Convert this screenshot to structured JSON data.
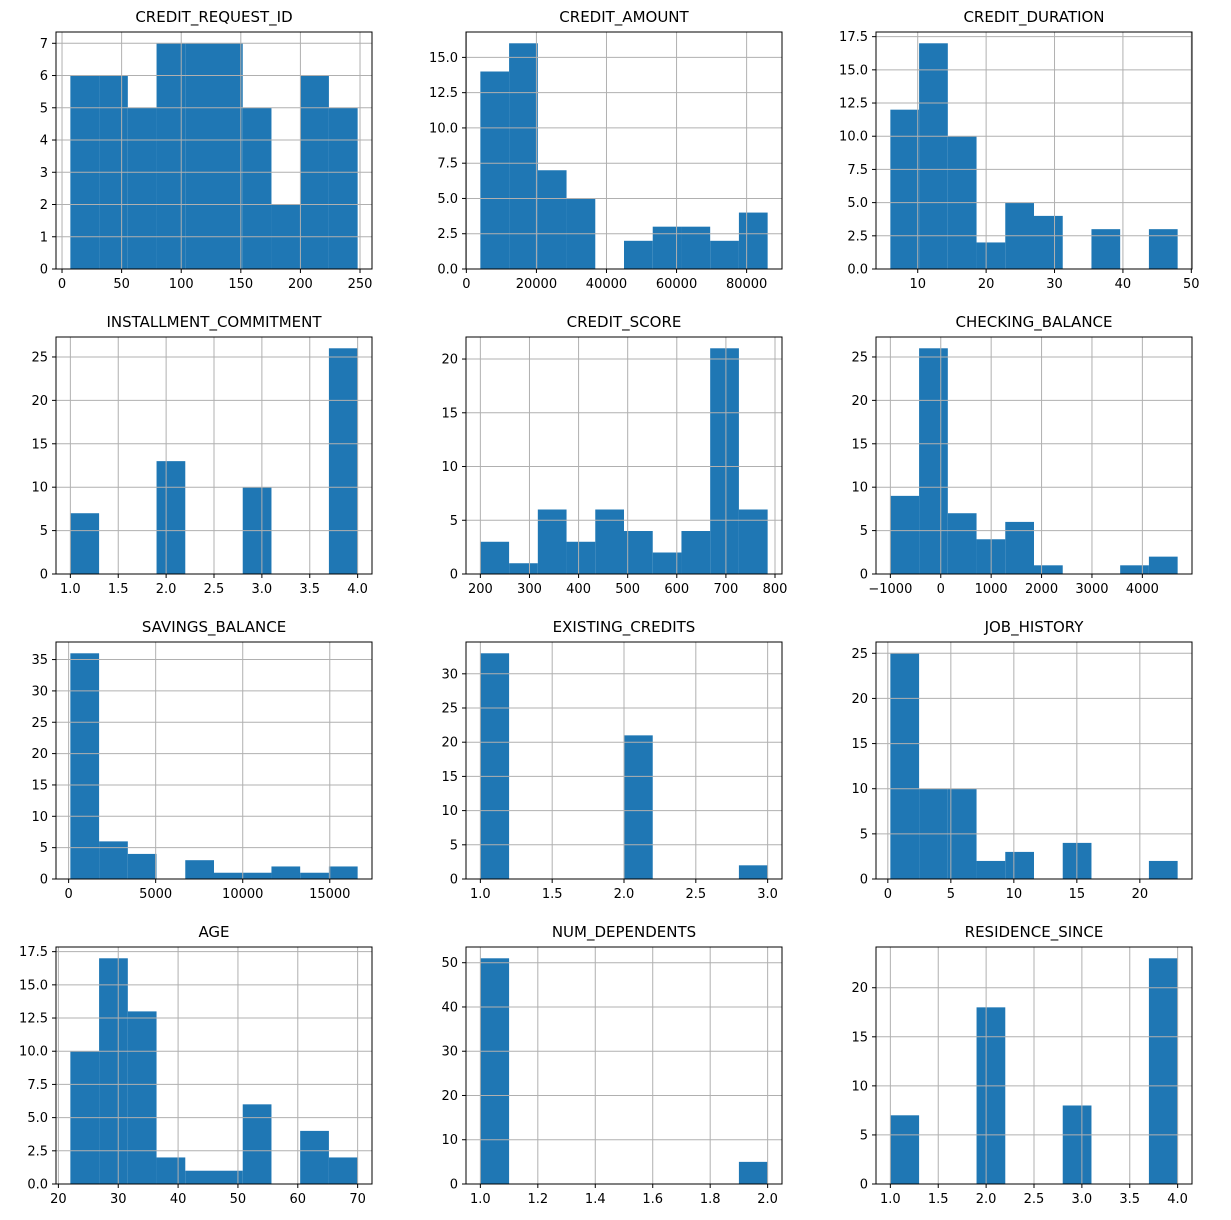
{
  "figure": {
    "background": "#ffffff",
    "bar_color": "#1f77b4",
    "grid_color": "#b0b0b0",
    "spine_color": "#000000",
    "text_color": "#000000",
    "rows": 4,
    "cols": 3
  },
  "chart_data": [
    {
      "type": "bar",
      "id": "credit-request-id",
      "title": "CREDIT_REQUEST_ID",
      "bin_edges": [
        7,
        31.1,
        55.2,
        79.3,
        103.4,
        127.5,
        151.6,
        175.7,
        199.8,
        223.9,
        248
      ],
      "counts": [
        6,
        6,
        5,
        7,
        7,
        7,
        5,
        2,
        6,
        5
      ],
      "xtick_vals": [
        0,
        50,
        100,
        150,
        200,
        250
      ],
      "xtick_labels": [
        "0",
        "50",
        "100",
        "150",
        "200",
        "250"
      ],
      "ytick_vals": [
        0,
        1,
        2,
        3,
        4,
        5,
        6,
        7
      ],
      "ytick_labels": [
        "0",
        "1",
        "2",
        "3",
        "4",
        "5",
        "6",
        "7"
      ],
      "ylim": [
        0,
        7.35
      ],
      "grid": true,
      "legend": null
    },
    {
      "type": "bar",
      "id": "credit-amount",
      "title": "CREDIT_AMOUNT",
      "bin_edges": [
        4000,
        12200,
        20400,
        28600,
        36800,
        45000,
        53200,
        61400,
        69600,
        77800,
        86000
      ],
      "counts": [
        14,
        16,
        7,
        5,
        0,
        2,
        3,
        3,
        2,
        4
      ],
      "xtick_vals": [
        0,
        20000,
        40000,
        60000,
        80000
      ],
      "xtick_labels": [
        "0",
        "20000",
        "40000",
        "60000",
        "80000"
      ],
      "ytick_vals": [
        0,
        2.5,
        5,
        7.5,
        10,
        12.5,
        15
      ],
      "ytick_labels": [
        "0.0",
        "2.5",
        "5.0",
        "7.5",
        "10.0",
        "12.5",
        "15.0"
      ],
      "ylim": [
        0,
        16.8
      ],
      "grid": true,
      "legend": null
    },
    {
      "type": "bar",
      "id": "credit-duration",
      "title": "CREDIT_DURATION",
      "bin_edges": [
        6,
        10.2,
        14.4,
        18.6,
        22.8,
        27,
        31.2,
        35.4,
        39.6,
        43.8,
        48
      ],
      "counts": [
        12,
        17,
        10,
        2,
        5,
        4,
        0,
        3,
        0,
        3
      ],
      "xtick_vals": [
        10,
        20,
        30,
        40,
        50
      ],
      "xtick_labels": [
        "10",
        "20",
        "30",
        "40",
        "50"
      ],
      "ytick_vals": [
        0,
        2.5,
        5,
        7.5,
        10,
        12.5,
        15,
        17.5
      ],
      "ytick_labels": [
        "0.0",
        "2.5",
        "5.0",
        "7.5",
        "10.0",
        "12.5",
        "15.0",
        "17.5"
      ],
      "ylim": [
        0,
        17.85
      ],
      "grid": true,
      "legend": null
    },
    {
      "type": "bar",
      "id": "installment-commitment",
      "title": "INSTALLMENT_COMMITMENT",
      "bin_edges": [
        1,
        1.3,
        1.6,
        1.9,
        2.2,
        2.5,
        2.8,
        3.1,
        3.4,
        3.7,
        4
      ],
      "counts": [
        7,
        0,
        0,
        13,
        0,
        0,
        10,
        0,
        0,
        26
      ],
      "xtick_vals": [
        1,
        1.5,
        2,
        2.5,
        3,
        3.5,
        4
      ],
      "xtick_labels": [
        "1.0",
        "1.5",
        "2.0",
        "2.5",
        "3.0",
        "3.5",
        "4.0"
      ],
      "ytick_vals": [
        0,
        5,
        10,
        15,
        20,
        25
      ],
      "ytick_labels": [
        "0",
        "5",
        "10",
        "15",
        "20",
        "25"
      ],
      "ylim": [
        0,
        27.3
      ],
      "grid": true,
      "legend": null
    },
    {
      "type": "bar",
      "id": "credit-score",
      "title": "CREDIT_SCORE",
      "bin_edges": [
        200,
        258.5,
        317,
        375.5,
        434,
        492.5,
        551,
        609.5,
        668,
        726.5,
        785
      ],
      "counts": [
        3,
        1,
        6,
        3,
        6,
        4,
        2,
        4,
        21,
        6
      ],
      "xtick_vals": [
        200,
        300,
        400,
        500,
        600,
        700,
        800
      ],
      "xtick_labels": [
        "200",
        "300",
        "400",
        "500",
        "600",
        "700",
        "800"
      ],
      "ytick_vals": [
        0,
        5,
        10,
        15,
        20
      ],
      "ytick_labels": [
        "0",
        "5",
        "10",
        "15",
        "20"
      ],
      "ylim": [
        0,
        22.05
      ],
      "grid": true,
      "legend": null
    },
    {
      "type": "bar",
      "id": "checking-balance",
      "title": "CHECKING_BALANCE",
      "bin_edges": [
        -1000,
        -430,
        140,
        710,
        1280,
        1850,
        2420,
        2990,
        3560,
        4130,
        4700
      ],
      "counts": [
        9,
        26,
        7,
        4,
        6,
        1,
        0,
        0,
        1,
        2
      ],
      "xtick_vals": [
        -1000,
        0,
        1000,
        2000,
        3000,
        4000
      ],
      "xtick_labels": [
        "−1000",
        "0",
        "1000",
        "2000",
        "3000",
        "4000"
      ],
      "ytick_vals": [
        0,
        5,
        10,
        15,
        20,
        25
      ],
      "ytick_labels": [
        "0",
        "5",
        "10",
        "15",
        "20",
        "25"
      ],
      "ylim": [
        0,
        27.3
      ],
      "grid": true,
      "legend": null
    },
    {
      "type": "bar",
      "id": "savings-balance",
      "title": "SAVINGS_BALANCE",
      "bin_edges": [
        100,
        1750,
        3400,
        5050,
        6700,
        8350,
        10000,
        11650,
        13300,
        14950,
        16600
      ],
      "counts": [
        36,
        6,
        4,
        0,
        3,
        1,
        1,
        2,
        1,
        2
      ],
      "xtick_vals": [
        0,
        5000,
        10000,
        15000
      ],
      "xtick_labels": [
        "0",
        "5000",
        "10000",
        "15000"
      ],
      "ytick_vals": [
        0,
        5,
        10,
        15,
        20,
        25,
        30,
        35
      ],
      "ytick_labels": [
        "0",
        "5",
        "10",
        "15",
        "20",
        "25",
        "30",
        "35"
      ],
      "ylim": [
        0,
        37.8
      ],
      "grid": true,
      "legend": null
    },
    {
      "type": "bar",
      "id": "existing-credits",
      "title": "EXISTING_CREDITS",
      "bin_edges": [
        1,
        1.2,
        1.4,
        1.6,
        1.8,
        2,
        2.2,
        2.4,
        2.6,
        2.8,
        3
      ],
      "counts": [
        33,
        0,
        0,
        0,
        0,
        21,
        0,
        0,
        0,
        2
      ],
      "xtick_vals": [
        1,
        1.5,
        2,
        2.5,
        3
      ],
      "xtick_labels": [
        "1.0",
        "1.5",
        "2.0",
        "2.5",
        "3.0"
      ],
      "ytick_vals": [
        0,
        5,
        10,
        15,
        20,
        25,
        30
      ],
      "ytick_labels": [
        "0",
        "5",
        "10",
        "15",
        "20",
        "25",
        "30"
      ],
      "ylim": [
        0,
        34.65
      ],
      "grid": true,
      "legend": null
    },
    {
      "type": "bar",
      "id": "job-history",
      "title": "JOB_HISTORY",
      "bin_edges": [
        0.2,
        2.48,
        4.76,
        7.04,
        9.32,
        11.6,
        13.88,
        16.16,
        18.44,
        20.72,
        23
      ],
      "counts": [
        25,
        10,
        10,
        2,
        3,
        0,
        4,
        0,
        0,
        2
      ],
      "xtick_vals": [
        0,
        5,
        10,
        15,
        20
      ],
      "xtick_labels": [
        "0",
        "5",
        "10",
        "15",
        "20"
      ],
      "ytick_vals": [
        0,
        5,
        10,
        15,
        20,
        25
      ],
      "ytick_labels": [
        "0",
        "5",
        "10",
        "15",
        "20",
        "25"
      ],
      "ylim": [
        0,
        26.25
      ],
      "grid": true,
      "legend": null
    },
    {
      "type": "bar",
      "id": "age",
      "title": "AGE",
      "bin_edges": [
        22,
        26.8,
        31.6,
        36.4,
        41.2,
        46,
        50.8,
        55.6,
        60.4,
        65.2,
        70
      ],
      "counts": [
        10,
        17,
        13,
        2,
        1,
        1,
        6,
        0,
        4,
        2
      ],
      "xtick_vals": [
        20,
        30,
        40,
        50,
        60,
        70
      ],
      "xtick_labels": [
        "20",
        "30",
        "40",
        "50",
        "60",
        "70"
      ],
      "ytick_vals": [
        0,
        2.5,
        5,
        7.5,
        10,
        12.5,
        15,
        17.5
      ],
      "ytick_labels": [
        "0.0",
        "2.5",
        "5.0",
        "7.5",
        "10.0",
        "12.5",
        "15.0",
        "17.5"
      ],
      "ylim": [
        0,
        17.85
      ],
      "grid": true,
      "legend": null
    },
    {
      "type": "bar",
      "id": "num-dependents",
      "title": "NUM_DEPENDENTS",
      "bin_edges": [
        1,
        1.1,
        1.2,
        1.3,
        1.4,
        1.5,
        1.6,
        1.7,
        1.8,
        1.9,
        2
      ],
      "counts": [
        51,
        0,
        0,
        0,
        0,
        0,
        0,
        0,
        0,
        5
      ],
      "xtick_vals": [
        1,
        1.2,
        1.4,
        1.6,
        1.8,
        2
      ],
      "xtick_labels": [
        "1.0",
        "1.2",
        "1.4",
        "1.6",
        "1.8",
        "2.0"
      ],
      "ytick_vals": [
        0,
        10,
        20,
        30,
        40,
        50
      ],
      "ytick_labels": [
        "0",
        "10",
        "20",
        "30",
        "40",
        "50"
      ],
      "ylim": [
        0,
        53.55
      ],
      "grid": true,
      "legend": null
    },
    {
      "type": "bar",
      "id": "residence-since",
      "title": "RESIDENCE_SINCE",
      "bin_edges": [
        1,
        1.3,
        1.6,
        1.9,
        2.2,
        2.5,
        2.8,
        3.1,
        3.4,
        3.7,
        4
      ],
      "counts": [
        7,
        0,
        0,
        18,
        0,
        0,
        8,
        0,
        0,
        23
      ],
      "xtick_vals": [
        1,
        1.5,
        2,
        2.5,
        3,
        3.5,
        4
      ],
      "xtick_labels": [
        "1.0",
        "1.5",
        "2.0",
        "2.5",
        "3.0",
        "3.5",
        "4.0"
      ],
      "ytick_vals": [
        0,
        5,
        10,
        15,
        20
      ],
      "ytick_labels": [
        "0",
        "5",
        "10",
        "15",
        "20"
      ],
      "ylim": [
        0,
        24.15
      ],
      "grid": true,
      "legend": null
    }
  ]
}
